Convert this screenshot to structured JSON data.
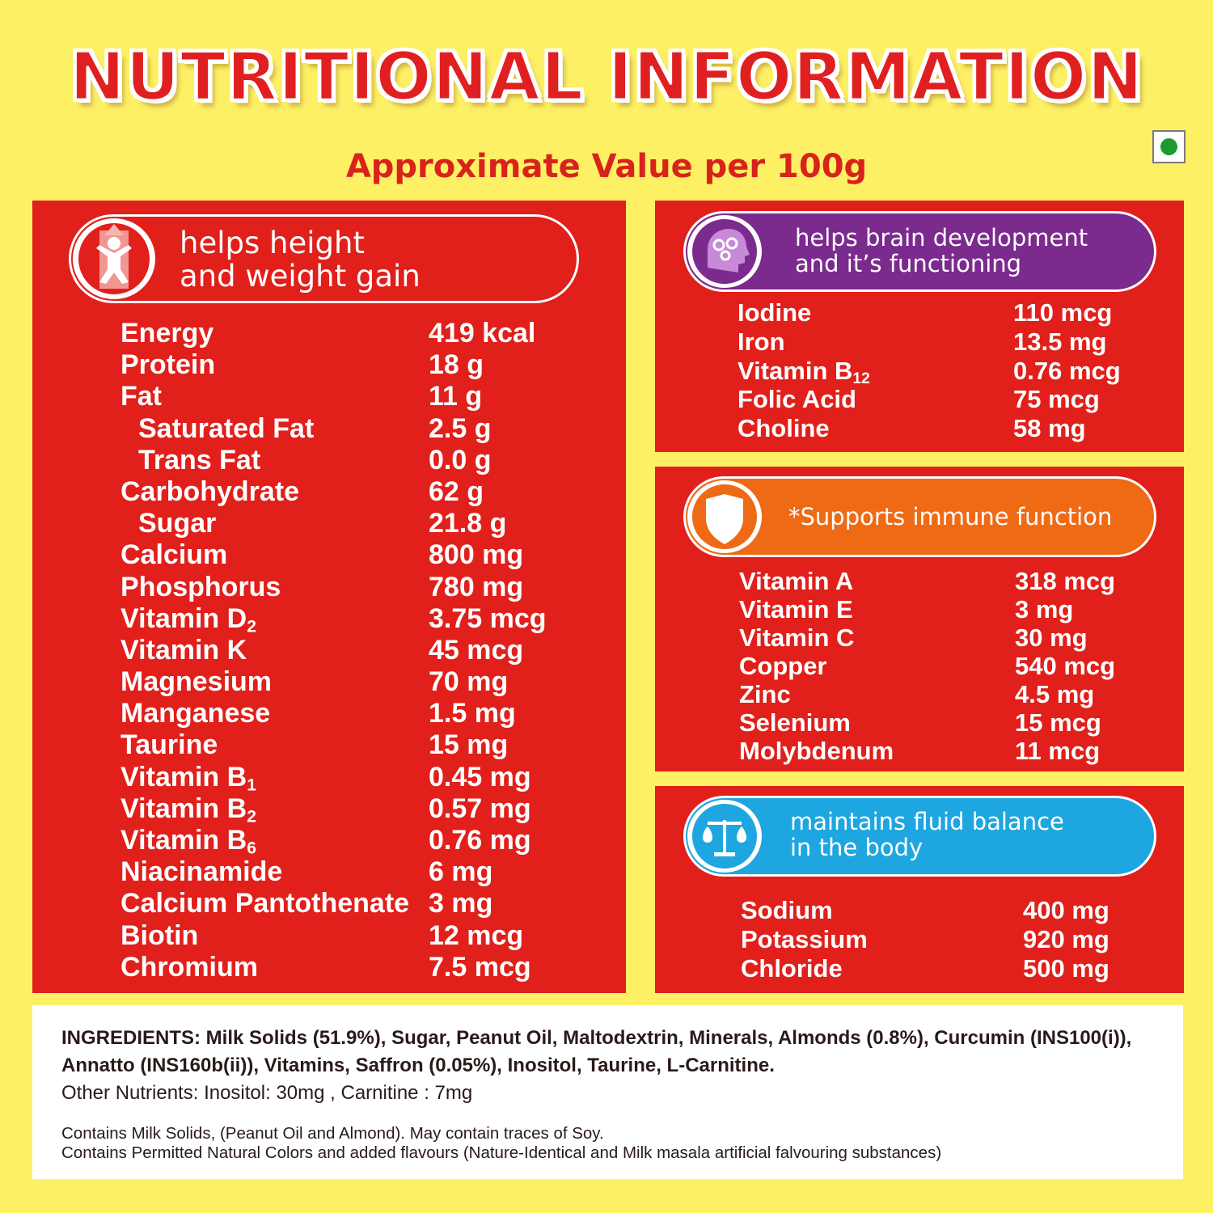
{
  "title": "NUTRITIONAL INFORMATION",
  "subtitle": "Approximate Value per 100g",
  "colors": {
    "background": "#fdf065",
    "panel_red": "#e11f1b",
    "brain_purple": "#7b2a8e",
    "immune_orange": "#ef6a14",
    "fluid_blue": "#1ea6e0"
  },
  "panels": {
    "growth": {
      "icon": "child-growth-icon",
      "label": "helps height\nand weight gain",
      "rows": [
        {
          "name": "Energy",
          "value": "419 kcal"
        },
        {
          "name": "Protein",
          "value": "18 g"
        },
        {
          "name": "Fat",
          "value": "11 g"
        },
        {
          "name": "Saturated Fat",
          "value": "2.5 g",
          "indent": true
        },
        {
          "name": "Trans Fat",
          "value": "0.0 g",
          "indent": true
        },
        {
          "name": "Carbohydrate",
          "value": "62 g"
        },
        {
          "name": "Sugar",
          "value": "21.8 g",
          "indent": true
        },
        {
          "name": "Calcium",
          "value": "800 mg"
        },
        {
          "name": "Phosphorus",
          "value": "780 mg"
        },
        {
          "name": "Vitamin D",
          "sub": "2",
          "value": "3.75 mcg"
        },
        {
          "name": "Vitamin K",
          "value": "45 mcg"
        },
        {
          "name": "Magnesium",
          "value": "70 mg"
        },
        {
          "name": "Manganese",
          "value": "1.5 mg"
        },
        {
          "name": "Taurine",
          "value": "15 mg"
        },
        {
          "name": "Vitamin B",
          "sub": "1",
          "value": "0.45 mg"
        },
        {
          "name": "Vitamin B",
          "sub": "2",
          "value": "0.57 mg"
        },
        {
          "name": "Vitamin B",
          "sub": "6",
          "value": "0.76 mg"
        },
        {
          "name": "Niacinamide",
          "value": "6 mg"
        },
        {
          "name": "Calcium Pantothenate",
          "value": "3 mg"
        },
        {
          "name": "Biotin",
          "value": "12 mcg"
        },
        {
          "name": "Chromium",
          "value": "7.5 mcg"
        }
      ]
    },
    "brain": {
      "icon": "brain-gears-icon",
      "label": "helps brain development\nand it’s functioning",
      "rows": [
        {
          "name": "Iodine",
          "value": "110 mcg"
        },
        {
          "name": "Iron",
          "value": "13.5 mg"
        },
        {
          "name": "Vitamin B",
          "sub": "12",
          "value": "0.76 mcg"
        },
        {
          "name": "Folic Acid",
          "value": "75 mcg"
        },
        {
          "name": "Choline",
          "value": "58 mg"
        }
      ]
    },
    "immune": {
      "icon": "shield-icon",
      "label": "*Supports immune function",
      "rows": [
        {
          "name": "Vitamin A",
          "value": "318 mcg"
        },
        {
          "name": "Vitamin E",
          "value": "3 mg"
        },
        {
          "name": "Vitamin C",
          "value": "30 mg"
        },
        {
          "name": "Copper",
          "value": "540 mcg"
        },
        {
          "name": "Zinc",
          "value": "4.5 mg"
        },
        {
          "name": "Selenium",
          "value": "15 mcg"
        },
        {
          "name": "Molybdenum",
          "value": "11 mcg"
        }
      ]
    },
    "fluid": {
      "icon": "balance-scale-icon",
      "label": "maintains fluid balance\nin the body",
      "rows": [
        {
          "name": "Sodium",
          "value": "400 mg"
        },
        {
          "name": "Potassium",
          "value": "920 mg"
        },
        {
          "name": "Chloride",
          "value": "500 mg"
        }
      ]
    }
  },
  "ingredients": {
    "main": "INGREDIENTS: Milk Solids (51.9%), Sugar, Peanut Oil, Maltodextrin, Minerals, Almonds (0.8%), Curcumin (INS100(i)), Annatto (INS160b(ii)), Vitamins, Saffron (0.05%), Inositol, Taurine, L-Carnitine.",
    "other": "Other Nutrients: Inositol: 30mg , Carnitine  : 7mg",
    "allergen": "Contains Milk Solids, (Peanut Oil and Almond). May contain traces of Soy.",
    "colors_note": "Contains Permitted Natural Colors and added flavours (Nature-Identical and Milk masala artificial falvouring substances)"
  }
}
